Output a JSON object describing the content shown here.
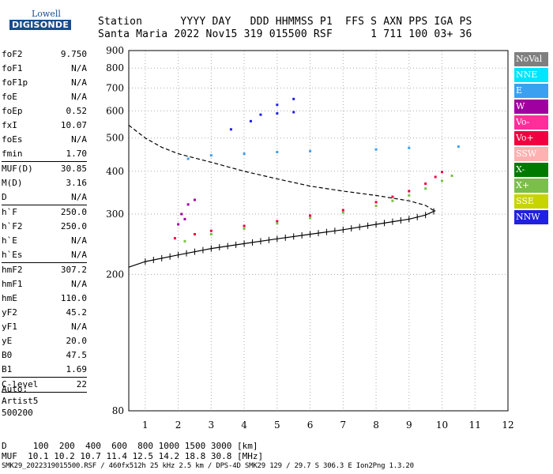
{
  "logo": {
    "text_top": "Lowell",
    "text_bottom": "DIGISONDE"
  },
  "header": {
    "line1": "Station      YYYY DAY   DDD HHMMSS P1  FFS S AXN PPS IGA PS",
    "line2": "Santa Maria 2022 Nov15 319 015500 RSF      1 711 100 03+ 36"
  },
  "params": [
    {
      "name": "foF2",
      "value": "9.750"
    },
    {
      "name": "foF1",
      "value": "N/A"
    },
    {
      "name": "foF1p",
      "value": "N/A"
    },
    {
      "name": "foE",
      "value": "N/A"
    },
    {
      "name": "foEp",
      "value": "0.52"
    },
    {
      "name": "fxI",
      "value": "10.07"
    },
    {
      "name": "foEs",
      "value": "N/A"
    },
    {
      "name": "fmin",
      "value": "1.70"
    },
    {
      "sep": true
    },
    {
      "name": "MUF(D)",
      "value": "30.85"
    },
    {
      "name": "M(D)",
      "value": "3.16"
    },
    {
      "name": "D",
      "value": "N/A"
    },
    {
      "sep": true
    },
    {
      "name": "h`F",
      "value": "250.0"
    },
    {
      "name": "h`F2",
      "value": "250.0"
    },
    {
      "name": "h`E",
      "value": "N/A"
    },
    {
      "name": "h`Es",
      "value": "N/A"
    },
    {
      "sep": true
    },
    {
      "name": "hmF2",
      "value": "307.2"
    },
    {
      "name": "hmF1",
      "value": "N/A"
    },
    {
      "name": "hmE",
      "value": "110.0"
    },
    {
      "name": "yF2",
      "value": "45.2"
    },
    {
      "name": "yF1",
      "value": "N/A"
    },
    {
      "name": "yE",
      "value": "20.0"
    },
    {
      "name": "B0",
      "value": "47.5"
    },
    {
      "name": "B1",
      "value": "1.69"
    },
    {
      "sep": true
    },
    {
      "name": "C-level",
      "value": "22"
    },
    {
      "sep": true
    }
  ],
  "auto_block": {
    "line1": "Auto:",
    "line2": "Artist5",
    "line3": "500200"
  },
  "legend": [
    {
      "label": "NoVal",
      "color": "#7f7f7f"
    },
    {
      "label": "NNE",
      "color": "#00e5ff"
    },
    {
      "label": "E",
      "color": "#3ca0f0"
    },
    {
      "label": "W",
      "color": "#a0009f"
    },
    {
      "label": "Vo-",
      "color": "#ff2e9a"
    },
    {
      "label": "Vo+",
      "color": "#f00040"
    },
    {
      "label": "SSW",
      "color": "#ffb0b0"
    },
    {
      "label": "X-",
      "color": "#007a00"
    },
    {
      "label": "X+",
      "color": "#7bbf4a"
    },
    {
      "label": "SSE",
      "color": "#c8d400"
    },
    {
      "label": "NNW",
      "color": "#2020e0"
    }
  ],
  "footer": {
    "line1": "D     100  200  400  600  800 1000 1500 3000 [km]",
    "line2": "MUF  10.1 10.2 10.7 11.4 12.5 14.2 18.8 30.8 [MHz]",
    "line3": "SMK29_2022319015500.RSF / 460fx512h 25 kHz 2.5 km / DPS-4D SMK29 129 / 29.7 S 306.3 E Ion2Png 1.3.20"
  },
  "chart_data": {
    "type": "scatter",
    "title": "",
    "xlabel": "",
    "ylabel": "",
    "xlim": [
      0.5,
      12
    ],
    "ylim": [
      80,
      900
    ],
    "y_scale": "log",
    "x_ticks": [
      1,
      2,
      3,
      4,
      5,
      6,
      7,
      8,
      9,
      10,
      11,
      12
    ],
    "y_ticks": [
      80,
      200,
      300,
      400,
      500,
      600,
      700,
      800,
      900
    ],
    "grid": "dotted",
    "legend_position": "right",
    "series": [
      {
        "name": "Vo+",
        "values": [
          [
            1.9,
            255
          ],
          [
            2.5,
            262
          ],
          [
            3.0,
            268
          ],
          [
            4.0,
            277
          ],
          [
            5.0,
            286
          ],
          [
            6.0,
            297
          ],
          [
            7.0,
            308
          ],
          [
            8.0,
            325
          ],
          [
            8.5,
            337
          ],
          [
            9.0,
            350
          ],
          [
            9.5,
            368
          ],
          [
            9.8,
            385
          ],
          [
            10.0,
            398
          ]
        ]
      },
      {
        "name": "X+",
        "values": [
          [
            2.2,
            250
          ],
          [
            3.0,
            262
          ],
          [
            4.0,
            272
          ],
          [
            5.0,
            282
          ],
          [
            6.0,
            292
          ],
          [
            7.0,
            303
          ],
          [
            8.0,
            317
          ],
          [
            8.5,
            328
          ],
          [
            9.0,
            340
          ],
          [
            9.5,
            356
          ],
          [
            10.0,
            375
          ],
          [
            10.3,
            388
          ]
        ]
      },
      {
        "name": "NNW",
        "values": [
          [
            4.5,
            585
          ],
          [
            5.0,
            625
          ],
          [
            5.5,
            650
          ],
          [
            3.6,
            530
          ],
          [
            4.2,
            560
          ],
          [
            5.0,
            590
          ],
          [
            5.5,
            595
          ]
        ]
      },
      {
        "name": "E",
        "values": [
          [
            2.3,
            435
          ],
          [
            3.0,
            445
          ],
          [
            4.0,
            450
          ],
          [
            5.0,
            455
          ],
          [
            6.0,
            458
          ],
          [
            8.0,
            463
          ],
          [
            9.0,
            468
          ],
          [
            10.5,
            472
          ]
        ]
      },
      {
        "name": "W",
        "values": [
          [
            2.0,
            280
          ],
          [
            2.1,
            300
          ],
          [
            2.3,
            320
          ],
          [
            2.5,
            330
          ],
          [
            2.2,
            290
          ]
        ]
      }
    ],
    "curves": [
      {
        "name": "virtual height profile",
        "style": "dashed",
        "values": [
          [
            0.5,
            545
          ],
          [
            1.0,
            500
          ],
          [
            1.5,
            470
          ],
          [
            2.0,
            450
          ],
          [
            3.0,
            425
          ],
          [
            4.0,
            400
          ],
          [
            5.0,
            380
          ],
          [
            6.0,
            362
          ],
          [
            7.0,
            350
          ],
          [
            8.0,
            340
          ],
          [
            9.0,
            328
          ],
          [
            9.5,
            318
          ],
          [
            9.8,
            305
          ]
        ]
      },
      {
        "name": "true height profile",
        "style": "ticks",
        "values": [
          [
            0.5,
            210
          ],
          [
            1.0,
            218
          ],
          [
            2.0,
            228
          ],
          [
            3.0,
            238
          ],
          [
            4.0,
            246
          ],
          [
            5.0,
            254
          ],
          [
            6.0,
            262
          ],
          [
            7.0,
            270
          ],
          [
            8.0,
            280
          ],
          [
            9.0,
            290
          ],
          [
            9.5,
            298
          ],
          [
            9.8,
            307
          ]
        ]
      }
    ]
  }
}
